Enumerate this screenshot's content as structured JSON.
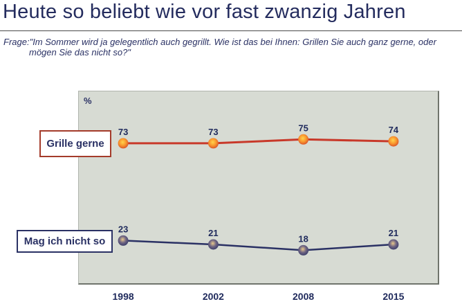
{
  "header": {
    "title": "Heute so beliebt wie vor fast zwanzig Jahren"
  },
  "question": {
    "prefix": "Frage:",
    "text": "\"Im Sommer wird ja gelegentlich auch gegrillt. Wie ist das bei Ihnen: Grillen Sie auch ganz gerne, oder mögen Sie das nicht so?\""
  },
  "chart_data": {
    "type": "line",
    "title": "",
    "xlabel": "",
    "ylabel": "%",
    "ylim": [
      0,
      100
    ],
    "grid": false,
    "legend_position": "left",
    "categories": [
      "1998",
      "2002",
      "2008",
      "2015"
    ],
    "series": [
      {
        "name": "Grille gerne",
        "values": [
          73,
          73,
          75,
          74
        ],
        "line_color": "#c8392a",
        "marker_gradient": [
          "#ffd34d",
          "#f9992f",
          "#cf3a25"
        ],
        "label_box_border": "#a43b2a"
      },
      {
        "name": "Mag ich nicht so",
        "values": [
          23,
          21,
          18,
          21
        ],
        "line_color": "#2a3164",
        "marker_gradient": [
          "#e9c98c",
          "#6f6583",
          "#293061"
        ],
        "label_box_border": "#2a3164"
      }
    ],
    "point_label_color": "#1f2a5c",
    "axis_label_color": "#1f2a5c"
  },
  "colors": {
    "title_text": "#242c5e",
    "body_text": "#2a3164",
    "plot_background": "#d7dbd3",
    "plot_border_light": "#b0b4ae",
    "plot_border_dark": "#6f746c",
    "divider": "#4a4a4a"
  }
}
